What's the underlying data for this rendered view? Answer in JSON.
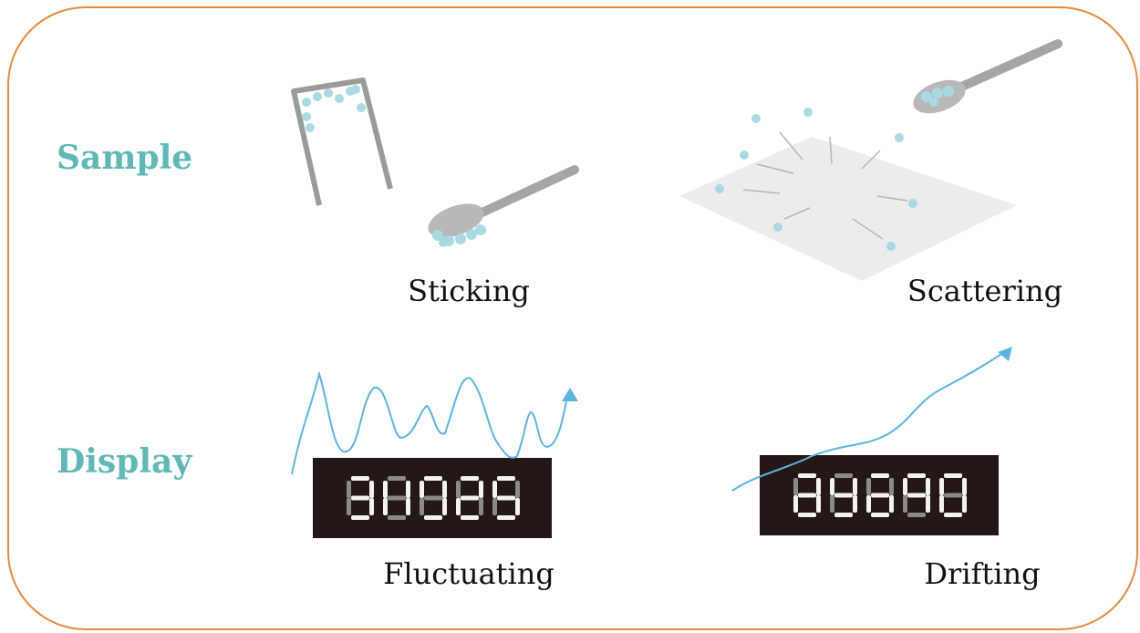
{
  "rows": [
    {
      "label": "Sample",
      "items": [
        "Sticking",
        "Scattering"
      ]
    },
    {
      "label": "Display",
      "items": [
        "Fluctuating",
        "Drifting"
      ]
    }
  ]
}
